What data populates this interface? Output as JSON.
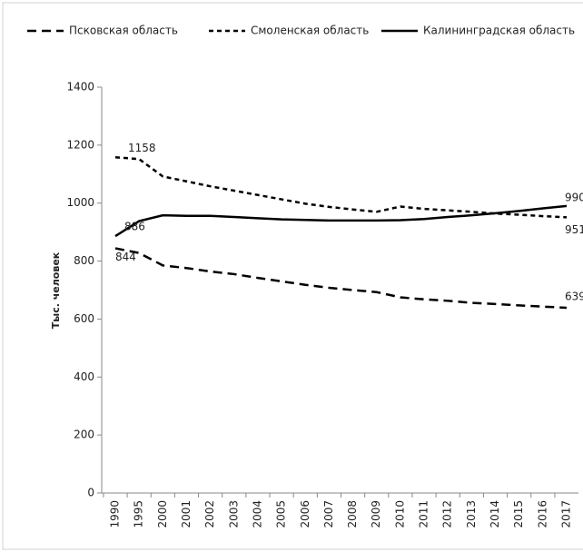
{
  "chart_data": {
    "type": "line",
    "y_label": "Тыс. человек",
    "categories": [
      "1990",
      "1995",
      "2000",
      "2001",
      "2002",
      "2003",
      "2004",
      "2005",
      "2006",
      "2007",
      "2008",
      "2009",
      "2010",
      "2011",
      "2012",
      "2013",
      "2014",
      "2015",
      "2016",
      "2017"
    ],
    "series": [
      {
        "name": "Псковская область",
        "color": "#000000",
        "dash": "long",
        "values": [
          844,
          828,
          785,
          776,
          764,
          755,
          742,
          730,
          718,
          708,
          700,
          693,
          675,
          668,
          663,
          656,
          652,
          647,
          643,
          639
        ]
      },
      {
        "name": "Смоленская область",
        "color": "#000000",
        "dash": "short",
        "values": [
          1158,
          1152,
          1092,
          1075,
          1058,
          1043,
          1028,
          1013,
          998,
          987,
          978,
          970,
          988,
          980,
          975,
          970,
          964,
          960,
          955,
          951
        ]
      },
      {
        "name": "Калининградская область",
        "color": "#000000",
        "dash": "solid",
        "values": [
          886,
          938,
          958,
          956,
          956,
          952,
          948,
          944,
          942,
          940,
          940,
          940,
          941,
          945,
          952,
          958,
          965,
          973,
          982,
          990
        ]
      }
    ],
    "ylim": [
      0,
      1400
    ],
    "yticks": [
      0,
      200,
      400,
      600,
      800,
      1000,
      1200,
      1400
    ],
    "grid": false,
    "legend": "top"
  }
}
